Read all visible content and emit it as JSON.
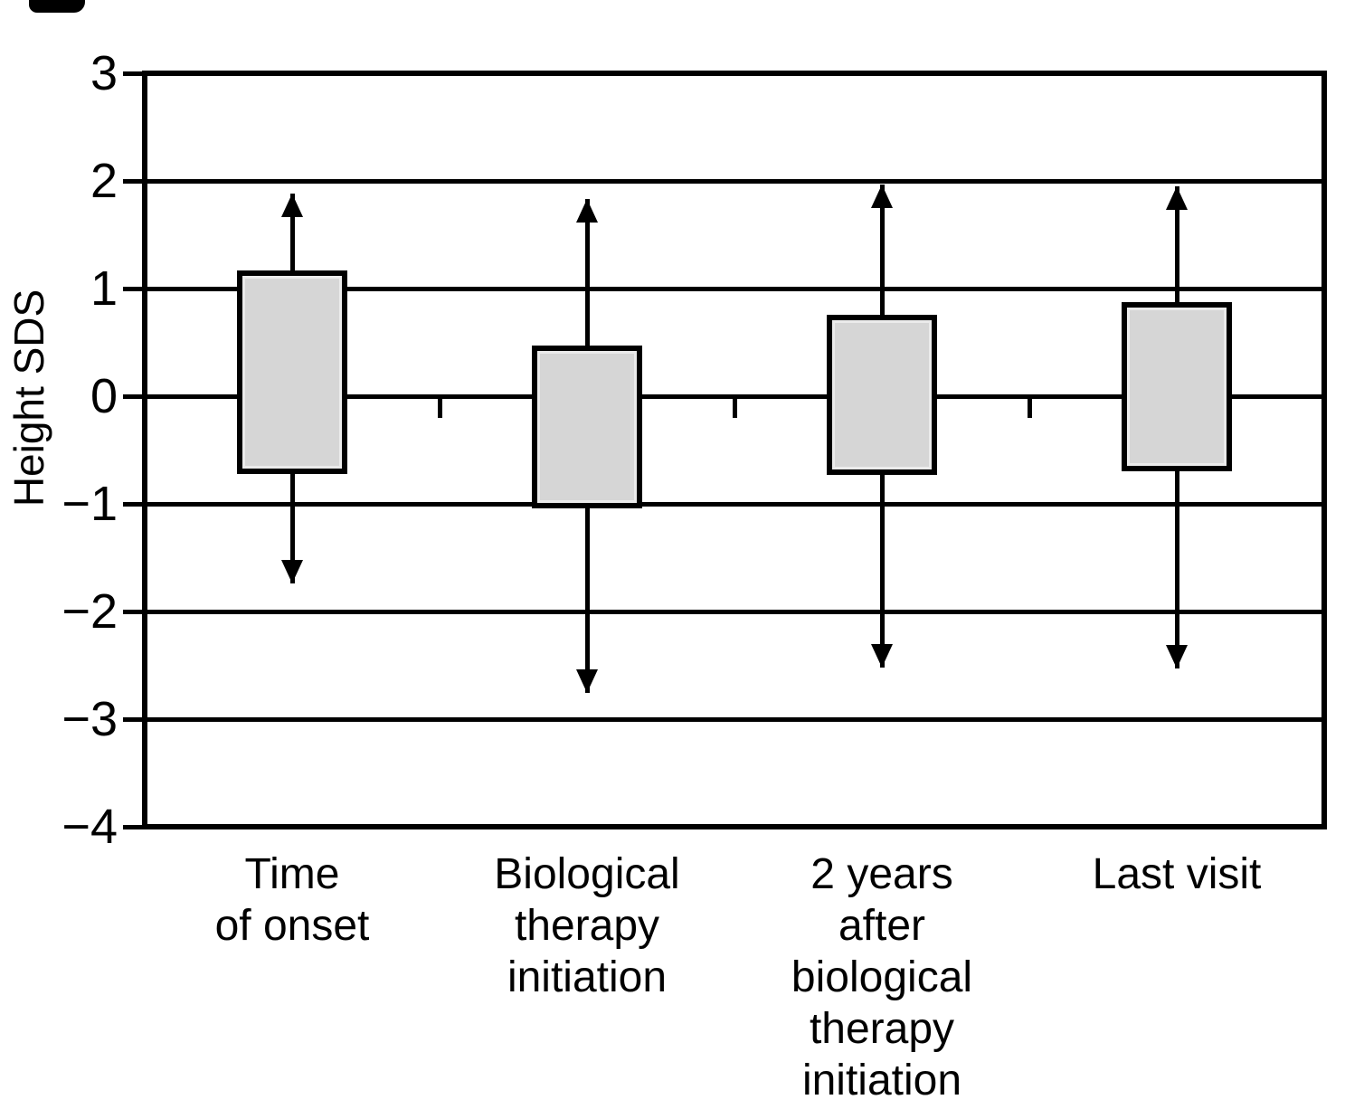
{
  "chart_data": {
    "type": "box",
    "title": "",
    "xlabel": "",
    "ylabel": "Height SDS",
    "ylim": [
      -4,
      3
    ],
    "yticks": [
      3,
      2,
      1,
      0,
      -1,
      -2,
      -3,
      -4
    ],
    "ytick_labels": [
      "3",
      "2",
      "1",
      "0",
      "−1",
      "−2",
      "−3",
      "−4"
    ],
    "grid": "horizontal lines at every integer tick, full plot width",
    "legend": "none",
    "frame": "full rectangular border around plot area",
    "zero_axis_ticks": "short ticks hang below the 0 line between categories",
    "categories": [
      {
        "label": "Time of onset",
        "label_lines": [
          "Time",
          "of onset"
        ],
        "box": [
          -0.72,
          1.17
        ],
        "whiskers": [
          -1.74,
          1.88
        ]
      },
      {
        "label": "Biological therapy initiation",
        "label_lines": [
          "Biological",
          "therapy",
          "initiation"
        ],
        "box": [
          -1.04,
          0.47
        ],
        "whiskers": [
          -2.76,
          1.83
        ]
      },
      {
        "label": "2 years after biological therapy initiation",
        "label_lines": [
          "2 years",
          "after",
          "biological",
          "therapy",
          "initiation"
        ],
        "box": [
          -0.73,
          0.76
        ],
        "whiskers": [
          -2.52,
          1.97
        ]
      },
      {
        "label": "Last visit",
        "label_lines": [
          "Last visit"
        ],
        "box": [
          -0.7,
          0.87
        ],
        "whiskers": [
          -2.53,
          1.95
        ]
      }
    ],
    "whisker_style": "vertical line through box center with filled triangular arrowheads at both ends",
    "colors": {
      "box_fill": "#d6d6d6",
      "box_inner_highlight": "#ebebeb",
      "stroke": "#000000",
      "background": "#ffffff"
    }
  }
}
